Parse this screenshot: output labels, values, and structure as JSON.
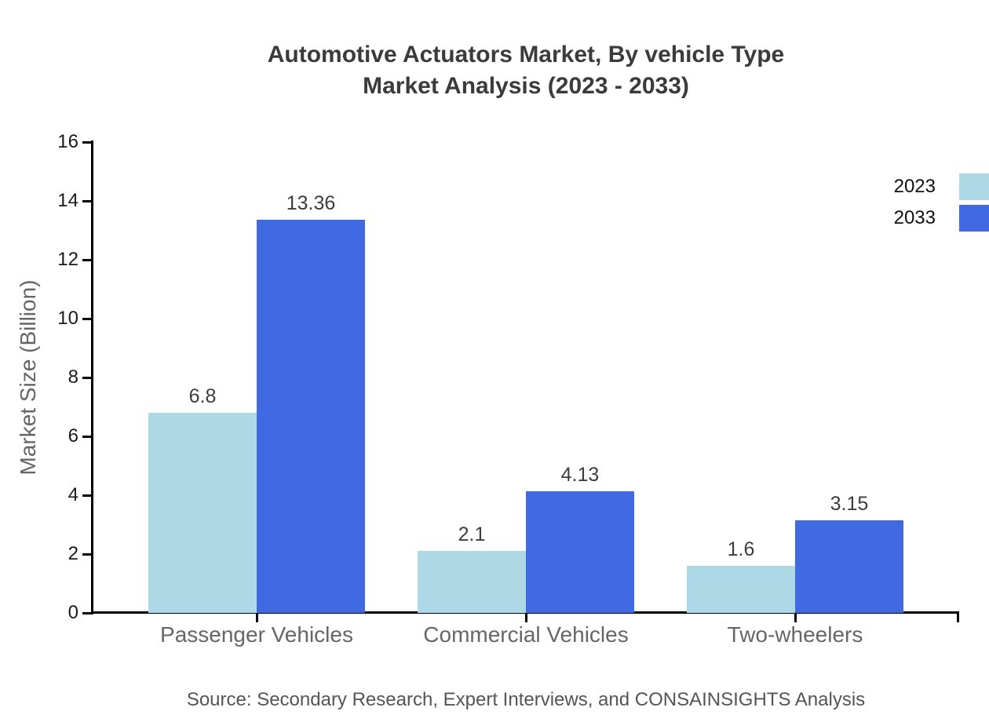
{
  "title": {
    "line1": "Automotive Actuators Market, By vehicle Type",
    "line2": "Market Analysis (2023 - 2033)"
  },
  "source": "Source: Secondary Research, Expert Interviews, and CONSAINSIGHTS Analysis",
  "chart_data": {
    "type": "bar",
    "title": "Automotive Actuators Market, By vehicle Type Market Analysis (2023 - 2033)",
    "categories": [
      "Passenger Vehicles",
      "Commercial Vehicles",
      "Two-wheelers"
    ],
    "series": [
      {
        "name": "2023",
        "color": "#ADD8E6",
        "values": [
          6.8,
          2.1,
          1.6
        ]
      },
      {
        "name": "2033",
        "color": "#4169E1",
        "values": [
          13.36,
          4.13,
          3.15
        ]
      }
    ],
    "value_labels": [
      [
        "6.8",
        "2.1",
        "1.6"
      ],
      [
        "13.36",
        "4.13",
        "3.15"
      ]
    ],
    "xlabel": "",
    "ylabel": "Market Size (Billion)",
    "ylim": [
      0,
      16
    ],
    "yticks": [
      0,
      2,
      4,
      6,
      8,
      10,
      12,
      14,
      16
    ],
    "grid": false,
    "legend_position": "top-right",
    "axis_color": "#000000",
    "label_color": "#3d3d3d",
    "tick_label_color": "#1a1a1a",
    "category_label_color": "#666666"
  }
}
